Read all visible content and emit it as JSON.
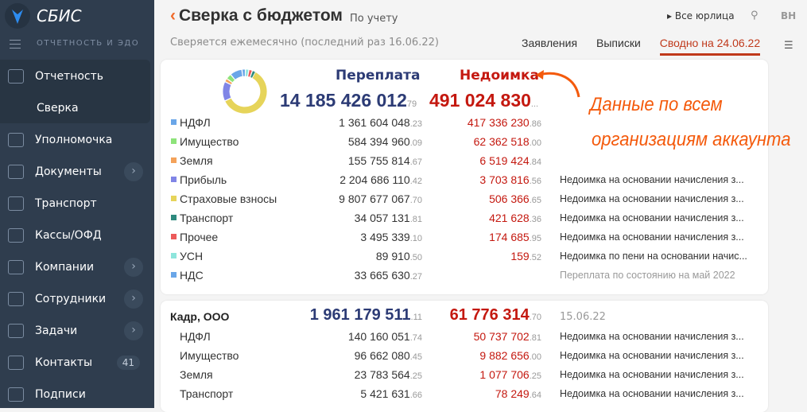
{
  "sidebar": {
    "brand": "СБИС",
    "section": "ОТЧЕТНОСТЬ И ЭДО",
    "items": [
      {
        "label": "Отчетность"
      },
      {
        "label": "Сверка"
      },
      {
        "label": "Уполномочка"
      },
      {
        "label": "Документы",
        "chevron": "›"
      },
      {
        "label": "Транспорт"
      },
      {
        "label": "Кассы/ОФД"
      },
      {
        "label": "Компании",
        "chevron": "›"
      },
      {
        "label": "Сотрудники",
        "chevron": "›"
      },
      {
        "label": "Задачи",
        "chevron": "›"
      },
      {
        "label": "Контакты",
        "count": "41"
      },
      {
        "label": "Подписи"
      }
    ]
  },
  "header": {
    "back": "‹",
    "title": "Сверка с бюджетом",
    "account": "По учету",
    "subtitle": "Сверяется ежемесячно (последний раз 16.06.22)",
    "all_orgs": "▸ Все юрлица",
    "user": "ВН",
    "tabs": [
      "Заявления",
      "Выписки",
      "Сводно на 24.06.22"
    ]
  },
  "summary": {
    "overpay_label": "Переплата",
    "arrears_label": "Недоимка",
    "overpay": "14 185 426 012",
    "overpay_dec": "79",
    "arrears": "491 024 830",
    "arrears_dec": "...",
    "rows": [
      {
        "name": "НДФЛ",
        "color": "#6aa6e8",
        "ov": "1 361 604 048",
        "ovd": ".23",
        "ar": "417 336 230",
        "ard": ".86",
        "note": ""
      },
      {
        "name": "Имущество",
        "color": "#8ee37a",
        "ov": "584 394 960",
        "ovd": ".09",
        "ar": "62 362 518",
        "ard": ".00",
        "note": ""
      },
      {
        "name": "Земля",
        "color": "#f4a25a",
        "ov": "155 755 814",
        "ovd": ".67",
        "ar": "6 519 424",
        "ard": ".84",
        "note": ""
      },
      {
        "name": "Прибыль",
        "color": "#8085e6",
        "ov": "2 204 686 110",
        "ovd": ".42",
        "ar": "3 703 816",
        "ard": ".56",
        "note": "Недоимка на основании начисления з..."
      },
      {
        "name": "Страховые взносы",
        "color": "#e6d45a",
        "ov": "9 807 677 067",
        "ovd": ".70",
        "ar": "506 366",
        "ard": ".65",
        "note": "Недоимка на основании начисления з..."
      },
      {
        "name": "Транспорт",
        "color": "#2e8a7e",
        "ov": "34 057 131",
        "ovd": ".81",
        "ar": "421 628",
        "ard": ".36",
        "note": "Недоимка на основании начисления з..."
      },
      {
        "name": "Прочее",
        "color": "#ec5a5a",
        "ov": "3 495 339",
        "ovd": ".10",
        "ar": "174 685",
        "ard": ".95",
        "note": "Недоимка на основании начисления з..."
      },
      {
        "name": "УСН",
        "color": "#8ee5dc",
        "ov": "89 910",
        "ovd": ".50",
        "ar": "159",
        "ard": ".52",
        "note": "Недоимка по пени на основании начис..."
      },
      {
        "name": "НДС",
        "color": "#6aa6e8",
        "ov": "33 665 630",
        "ovd": ".27",
        "ar": "",
        "ard": "",
        "note": "Переплата по состоянию на май 2022",
        "grey": true
      }
    ]
  },
  "org": {
    "name": "Кадр, ООО",
    "overpay": "1 961 179 511",
    "overpay_dec": ".11",
    "arrears": "61 776 314",
    "arrears_dec": ".70",
    "date": "15.06.22",
    "rows": [
      {
        "name": "НДФЛ",
        "ov": "140 160 051",
        "ovd": ".74",
        "ar": "50 737 702",
        "ard": ".81",
        "note": "Недоимка на основании начисления з..."
      },
      {
        "name": "Имущество",
        "ov": "96 662 080",
        "ovd": ".45",
        "ar": "9 882 656",
        "ard": ".00",
        "note": "Недоимка на основании начисления з..."
      },
      {
        "name": "Земля",
        "ov": "23 783 564",
        "ovd": ".25",
        "ar": "1 077 706",
        "ard": ".25",
        "note": "Недоимка на основании начисления з..."
      },
      {
        "name": "Транспорт",
        "ov": "5 421 631",
        "ovd": ".66",
        "ar": "78 249",
        "ard": ".64",
        "note": "Недоимка на основании начисления з..."
      }
    ]
  },
  "annotation": {
    "line1": "Данные по всем",
    "line2": "организациям аккаунта"
  }
}
